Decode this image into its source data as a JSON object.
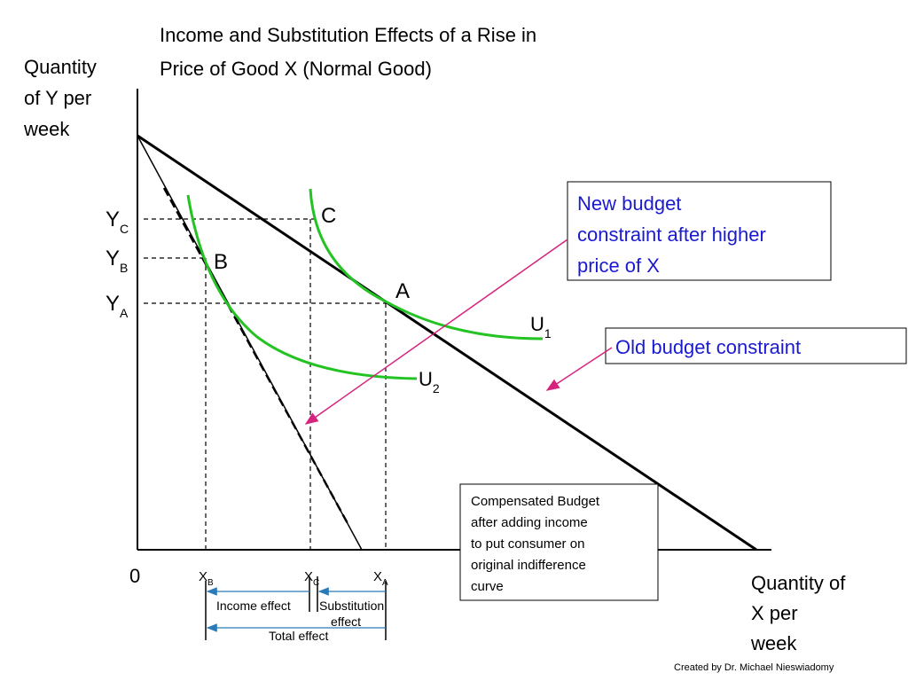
{
  "title": {
    "lines": [
      "Income and Substitution Effects of a Rise in",
      "Price of Good X (Normal Good)"
    ]
  },
  "y_axis": {
    "label_lines": [
      "Quantity",
      "of Y per",
      "week"
    ],
    "ticks": [
      {
        "main": "Y",
        "sub": "C"
      },
      {
        "main": "Y",
        "sub": "B"
      },
      {
        "main": "Y",
        "sub": "A"
      }
    ]
  },
  "x_axis": {
    "label_lines": [
      "Quantity of",
      "X per",
      "week"
    ],
    "origin": "0",
    "ticks": [
      {
        "main": "X",
        "sub": "B"
      },
      {
        "main": "X",
        "sub": "C"
      },
      {
        "main": "X",
        "sub": "A"
      }
    ]
  },
  "points": [
    "C",
    "B",
    "A"
  ],
  "curves": [
    {
      "main": "U",
      "sub": "1"
    },
    {
      "main": "U",
      "sub": "2"
    }
  ],
  "callouts": {
    "new_budget": [
      "New budget",
      "constraint after higher",
      "price of X"
    ],
    "old_budget": "Old budget constraint",
    "compensated": [
      "Compensated Budget",
      "after adding income",
      "to  put consumer on",
      "original indifference",
      "curve"
    ]
  },
  "effects": {
    "income": "Income effect",
    "substitution": [
      "Substitution",
      "effect"
    ],
    "total": "Total effect"
  },
  "credit": "Created by Dr. Michael Nieswiadomy"
}
